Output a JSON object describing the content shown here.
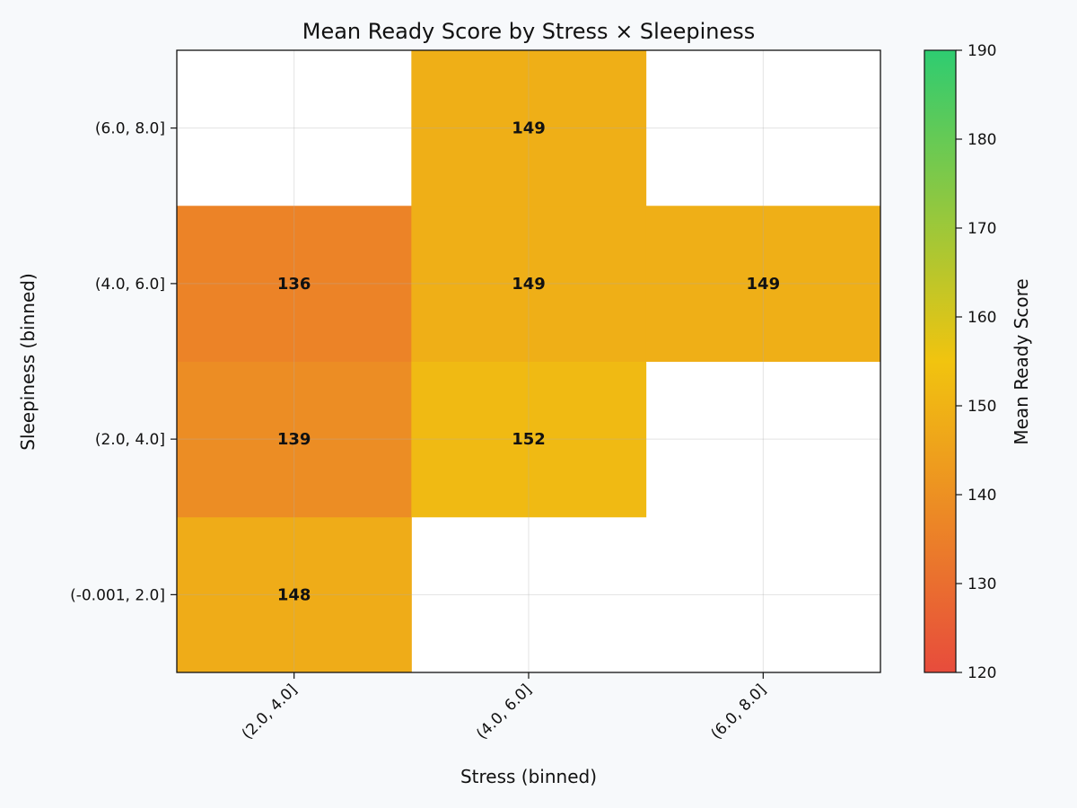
{
  "chart_data": {
    "type": "heatmap",
    "title": "Mean Ready Score by Stress × Sleepiness",
    "xlabel": "Stress (binned)",
    "ylabel": "Sleepiness (binned)",
    "x_categories": [
      "(2.0, 4.0]",
      "(4.0, 6.0]",
      "(6.0, 8.0]"
    ],
    "y_categories": [
      "(-0.001, 2.0]",
      "(2.0, 4.0]",
      "(4.0, 6.0]",
      "(6.0, 8.0]"
    ],
    "cells": [
      {
        "x": "(2.0, 4.0]",
        "y": "(-0.001, 2.0]",
        "value": 148
      },
      {
        "x": "(2.0, 4.0]",
        "y": "(2.0, 4.0]",
        "value": 139
      },
      {
        "x": "(2.0, 4.0]",
        "y": "(4.0, 6.0]",
        "value": 136
      },
      {
        "x": "(4.0, 6.0]",
        "y": "(2.0, 4.0]",
        "value": 152
      },
      {
        "x": "(4.0, 6.0]",
        "y": "(4.0, 6.0]",
        "value": 149
      },
      {
        "x": "(4.0, 6.0]",
        "y": "(6.0, 8.0]",
        "value": 149
      },
      {
        "x": "(6.0, 8.0]",
        "y": "(4.0, 6.0]",
        "value": 149
      }
    ],
    "colorbar": {
      "label": "Mean Ready Score",
      "range": [
        120,
        190
      ],
      "ticks": [
        120,
        130,
        140,
        150,
        160,
        170,
        180,
        190
      ],
      "colors": [
        "#e74c3c",
        "#f1c40f",
        "#2ecc71"
      ]
    },
    "grid": true,
    "empty_cell_color": "#ffffff"
  }
}
